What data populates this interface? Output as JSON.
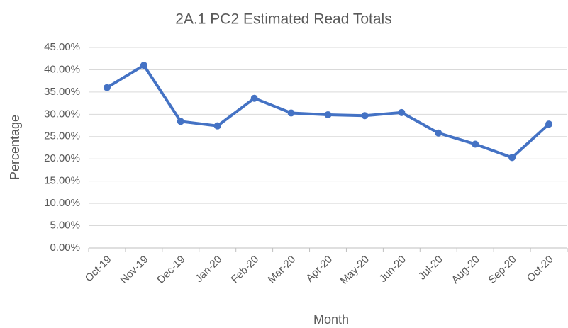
{
  "chart_data": {
    "type": "line",
    "title": "2A.1 PC2 Estimated Read Totals",
    "x_label": "Month",
    "y_label": "Percentage",
    "categories": [
      "Oct-19",
      "Nov-19",
      "Dec-19",
      "Jan-20",
      "Feb-20",
      "Mar-20",
      "Apr-20",
      "May-20",
      "Jun-20",
      "Jul-20",
      "Aug-20",
      "Sep-20",
      "Oct-20"
    ],
    "series": [
      {
        "name": "Percentage",
        "color": "#4472c4",
        "values": [
          36.0,
          41.0,
          28.4,
          27.4,
          33.6,
          30.3,
          29.9,
          29.7,
          30.4,
          25.8,
          23.3,
          20.3,
          27.8
        ]
      }
    ],
    "ylim": [
      0,
      45
    ],
    "yticks": [
      {
        "value": 0,
        "label": "0.00%"
      },
      {
        "value": 5,
        "label": "5.00%"
      },
      {
        "value": 10,
        "label": "10.00%"
      },
      {
        "value": 15,
        "label": "15.00%"
      },
      {
        "value": 20,
        "label": "20.00%"
      },
      {
        "value": 25,
        "label": "25.00%"
      },
      {
        "value": 30,
        "label": "30.00%"
      },
      {
        "value": 35,
        "label": "35.00%"
      },
      {
        "value": 40,
        "label": "40.00%"
      },
      {
        "value": 45,
        "label": "45.00%"
      }
    ],
    "grid": true
  }
}
